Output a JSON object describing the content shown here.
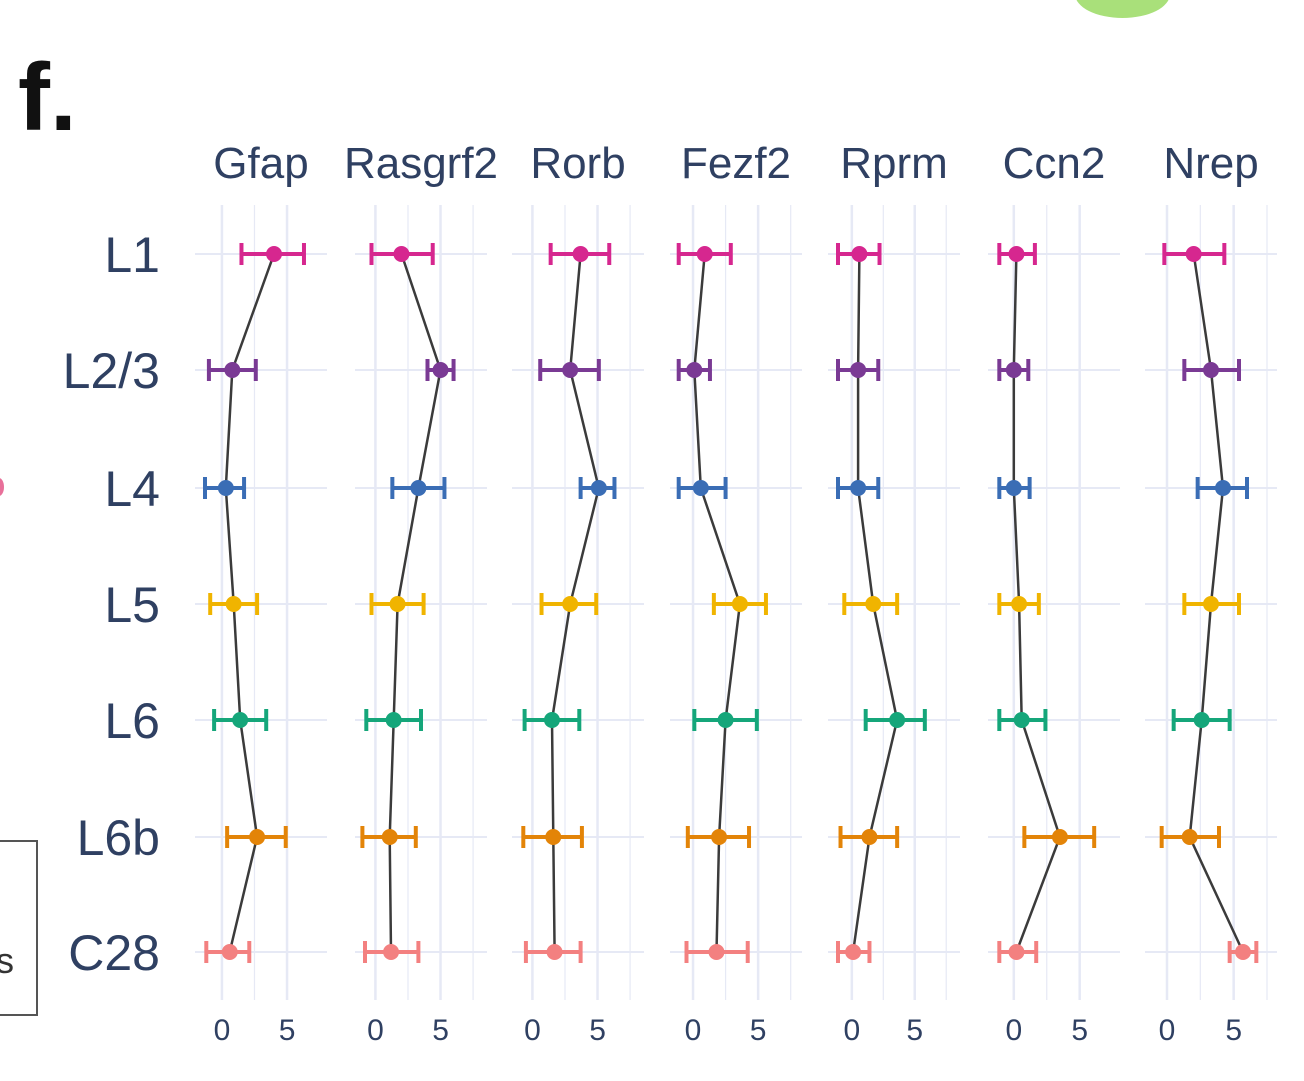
{
  "panel_label": "f.",
  "legend_fragment": "s",
  "colors": {
    "L1": "#d6278f",
    "L2/3": "#7a3a94",
    "L4": "#3a6db5",
    "L5": "#f0b400",
    "L6": "#15a67a",
    "L6b": "#e38408",
    "C28": "#f38080",
    "line": "#3b3b3b",
    "axis_text": "#2f4062",
    "grid": "#e6e9f5"
  },
  "chart_data": {
    "type": "scatter",
    "layers": [
      "L1",
      "L2/3",
      "L4",
      "L5",
      "L6",
      "L6b",
      "C28"
    ],
    "x_ticks": [
      0,
      5
    ],
    "panels": [
      {
        "gene": "Gfap",
        "xlim": [
          -1.3,
          7.3
        ],
        "mean": [
          4.0,
          0.8,
          0.3,
          0.9,
          1.4,
          2.7,
          0.6
        ],
        "lo": [
          1.5,
          -1.0,
          -1.3,
          -0.9,
          -0.6,
          0.4,
          -1.2
        ],
        "hi": [
          6.3,
          2.6,
          1.7,
          2.7,
          3.4,
          4.9,
          2.1
        ]
      },
      {
        "gene": "Rasgrf2",
        "xlim": [
          -0.8,
          7.8
        ],
        "mean": [
          2.0,
          5.0,
          3.3,
          1.7,
          1.4,
          1.1,
          1.2
        ],
        "lo": [
          -0.3,
          4.0,
          1.3,
          -0.3,
          -0.7,
          -1.0,
          -0.8
        ],
        "hi": [
          4.4,
          6.0,
          5.3,
          3.7,
          3.5,
          3.1,
          3.3
        ]
      },
      {
        "gene": "Rorb",
        "xlim": [
          -0.8,
          7.8
        ],
        "mean": [
          3.7,
          2.9,
          5.1,
          2.9,
          1.5,
          1.6,
          1.7
        ],
        "lo": [
          1.4,
          0.6,
          3.7,
          0.7,
          -0.6,
          -0.7,
          -0.5
        ],
        "hi": [
          5.9,
          5.1,
          6.3,
          4.9,
          3.6,
          3.8,
          3.7
        ]
      },
      {
        "gene": "Fezf2",
        "xlim": [
          -1.0,
          7.6
        ],
        "mean": [
          0.9,
          0.1,
          0.6,
          3.6,
          2.5,
          2.0,
          1.8
        ],
        "lo": [
          -1.1,
          -1.1,
          -1.1,
          1.6,
          0.1,
          -0.4,
          -0.5
        ],
        "hi": [
          2.9,
          1.3,
          2.5,
          5.6,
          4.9,
          4.3,
          4.2
        ]
      },
      {
        "gene": "Rprm",
        "xlim": [
          -1.1,
          7.8
        ],
        "mean": [
          0.6,
          0.5,
          0.5,
          1.7,
          3.6,
          1.4,
          0.1
        ],
        "lo": [
          -1.1,
          -1.1,
          -1.1,
          -0.6,
          1.1,
          -0.9,
          -1.1
        ],
        "hi": [
          2.2,
          2.1,
          2.1,
          3.6,
          5.8,
          3.6,
          1.4
        ]
      },
      {
        "gene": "Ccn2",
        "xlim": [
          -1.2,
          7.3
        ],
        "mean": [
          0.2,
          0.0,
          0.0,
          0.4,
          0.6,
          3.5,
          0.2
        ],
        "lo": [
          -1.1,
          -1.1,
          -1.1,
          -1.1,
          -1.1,
          0.8,
          -1.1
        ],
        "hi": [
          1.6,
          1.1,
          1.2,
          1.9,
          2.4,
          6.1,
          1.7
        ]
      },
      {
        "gene": "Nrep",
        "xlim": [
          -0.9,
          7.5
        ],
        "mean": [
          2.0,
          3.3,
          4.2,
          3.3,
          2.6,
          1.7,
          5.7
        ],
        "lo": [
          -0.2,
          1.3,
          2.3,
          1.3,
          0.5,
          -0.4,
          4.7
        ],
        "hi": [
          4.3,
          5.4,
          6.0,
          5.4,
          4.7,
          3.9,
          6.7
        ]
      }
    ]
  }
}
